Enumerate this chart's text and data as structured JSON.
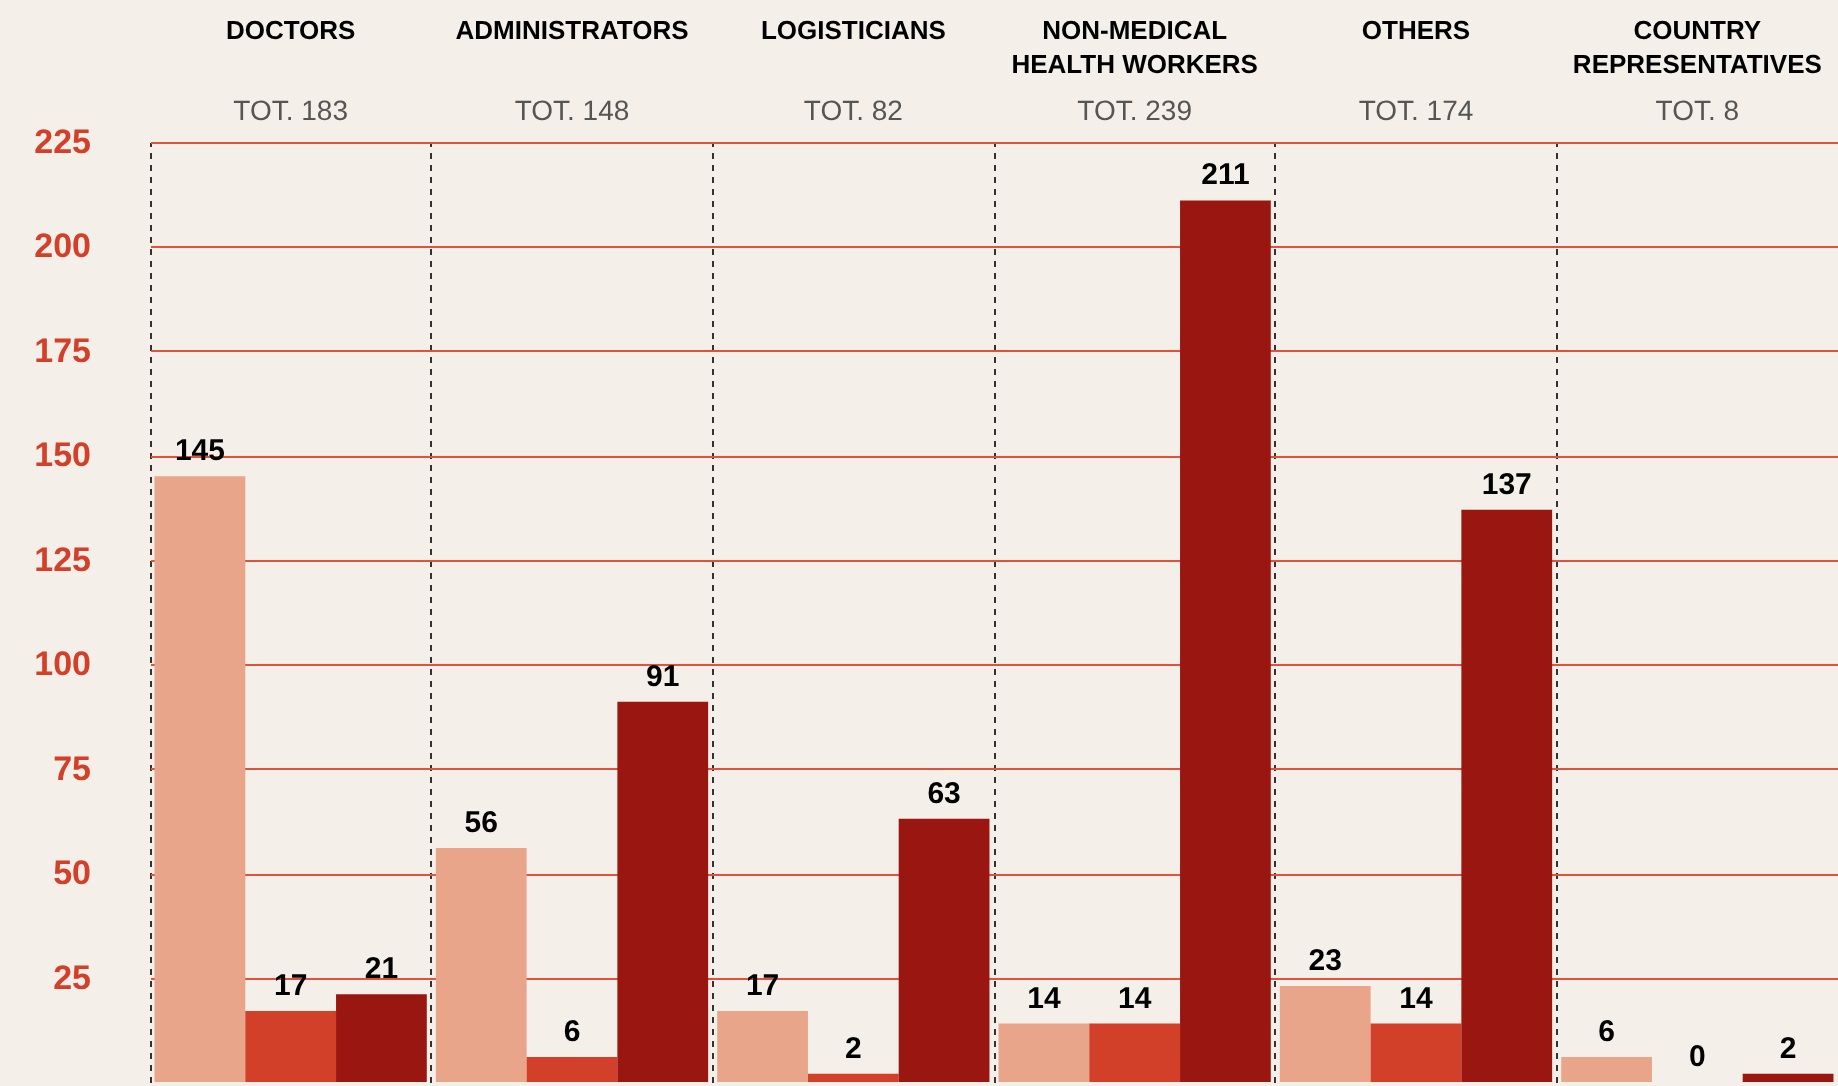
{
  "chart_data": {
    "type": "bar",
    "categories": [
      "DOCTORS",
      "ADMINISTRATORS",
      "LOGISTICIANS",
      "NON-MEDICAL HEALTH WORKERS",
      "OTHERS",
      "COUNTRY REPRESENTATIVES"
    ],
    "annotations": [
      "TOT. 183",
      "TOT. 148",
      "TOT. 82",
      "TOT. 239",
      "TOT. 174",
      "TOT. 8"
    ],
    "series": [
      {
        "color": "#e8a58a",
        "values": [
          145,
          56,
          17,
          14,
          23,
          6
        ]
      },
      {
        "color": "#d3402a",
        "values": [
          17,
          6,
          2,
          14,
          14,
          0
        ]
      },
      {
        "color": "#9a1610",
        "values": [
          21,
          91,
          63,
          211,
          137,
          2
        ]
      }
    ],
    "ylim": [
      0,
      225
    ],
    "yticks": [
      25,
      50,
      75,
      100,
      125,
      150,
      175,
      200,
      225
    ],
    "grid": true,
    "data_labels": true
  }
}
